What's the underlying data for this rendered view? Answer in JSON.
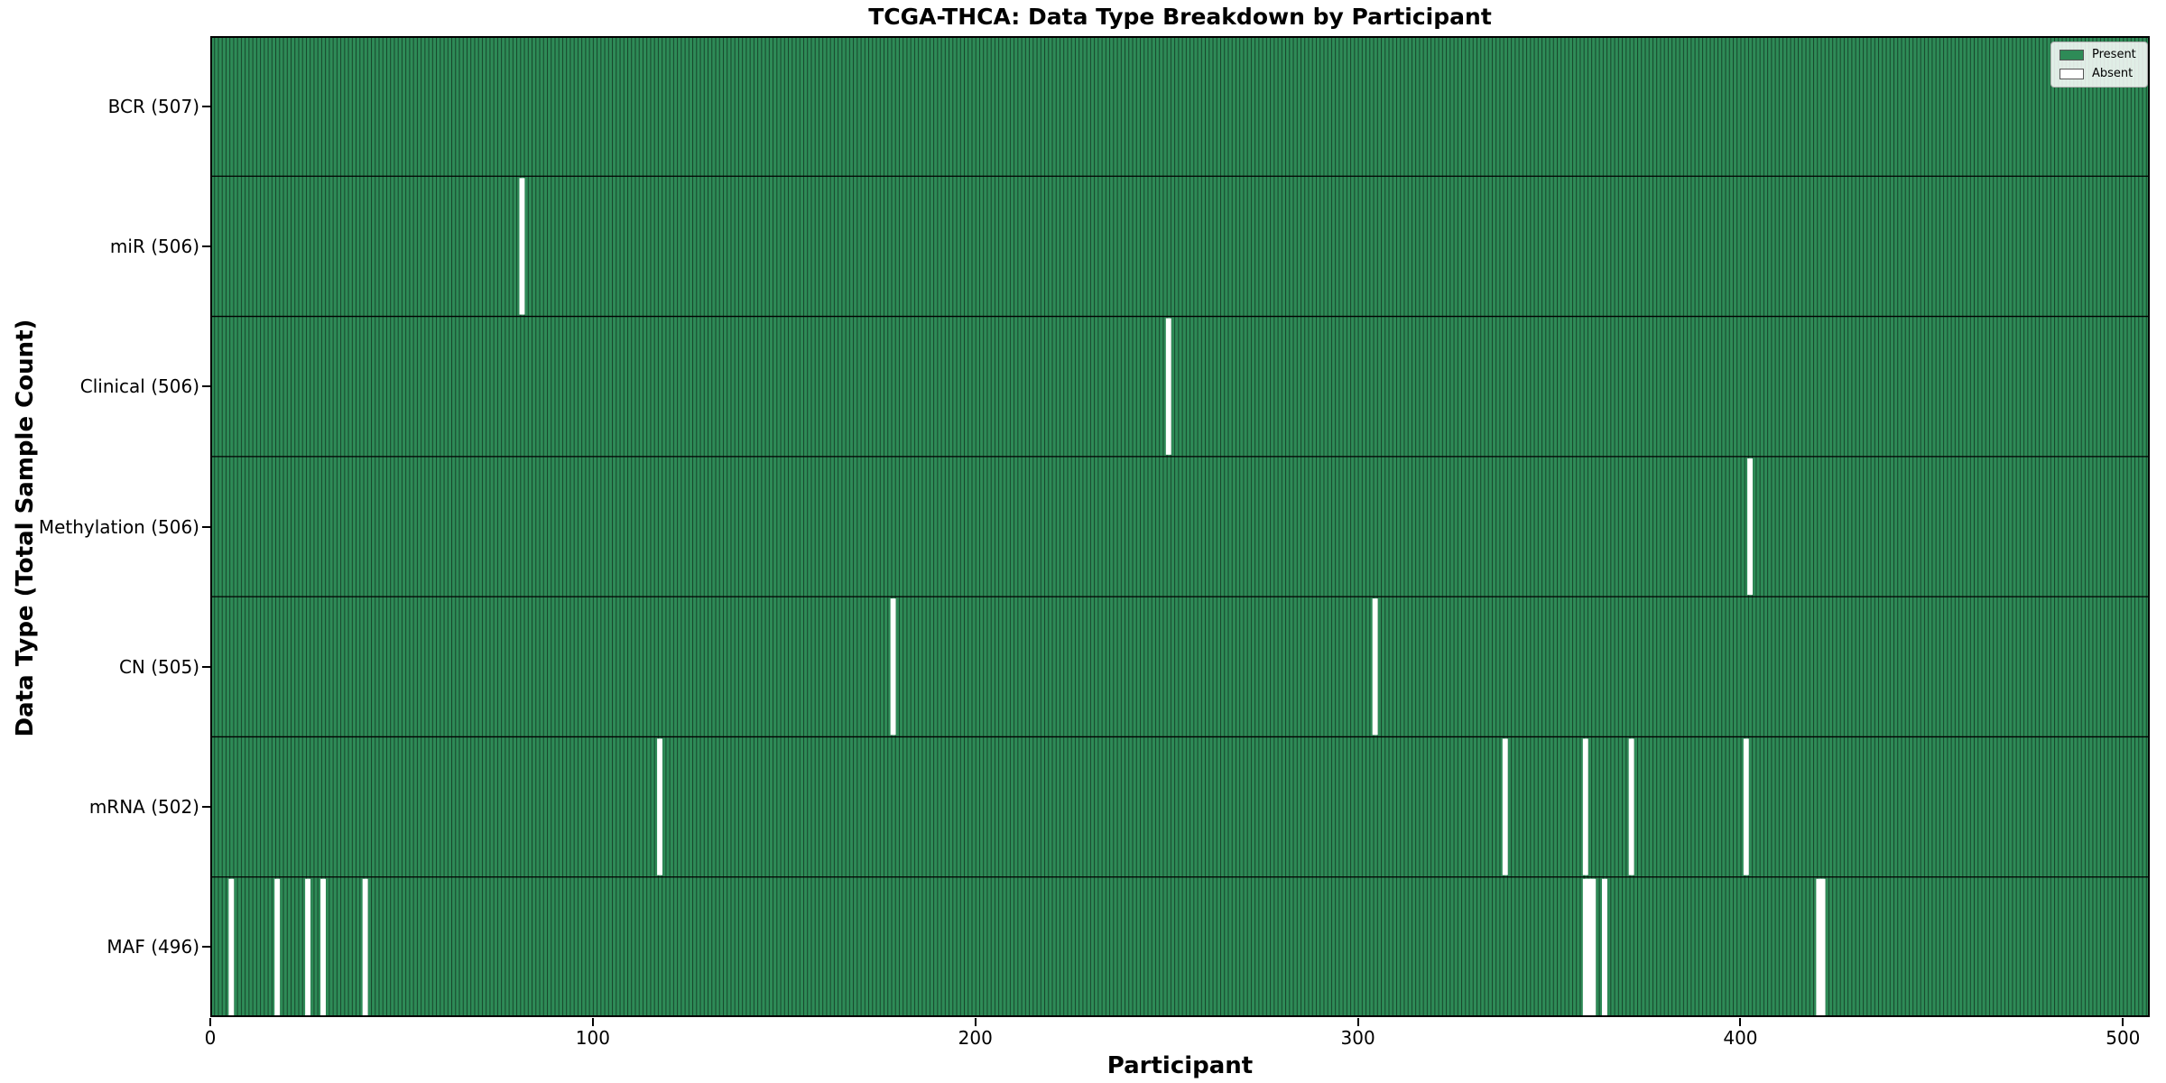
{
  "figure": {
    "title": "TCGA-THCA: Data Type Breakdown by Participant",
    "xlabel": "Participant",
    "ylabel": "Data Type (Total Sample Count)"
  },
  "legend": {
    "present_label": "Present",
    "absent_label": "Absent",
    "position": "upper right"
  },
  "colors": {
    "present": "#2e8b57",
    "absent": "#ffffff",
    "bar_edge": "rgba(0,0,0,0.5)",
    "separator": "#000000",
    "spine": "#000000"
  },
  "chart_data": {
    "type": "heatmap",
    "title": "TCGA-THCA: Data Type Breakdown by Participant",
    "xlabel": "Participant",
    "ylabel": "Data Type (Total Sample Count)",
    "legend": [
      "Present",
      "Absent"
    ],
    "legend_position": "upper right",
    "grid": false,
    "total_participants": 507,
    "xlim": [
      0,
      507
    ],
    "xticks": [
      0,
      100,
      200,
      300,
      400,
      500
    ],
    "rows": [
      {
        "label": "BCR (507)",
        "data_type": "BCR",
        "present_count": 507,
        "missing_participants": []
      },
      {
        "label": "miR (506)",
        "data_type": "miR",
        "present_count": 506,
        "missing_participants": [
          81
        ]
      },
      {
        "label": "Clinical (506)",
        "data_type": "Clinical",
        "present_count": 506,
        "missing_participants": [
          250
        ]
      },
      {
        "label": "Methylation (506)",
        "data_type": "Methylation",
        "present_count": 506,
        "missing_participants": [
          402
        ]
      },
      {
        "label": "CN (505)",
        "data_type": "CN",
        "present_count": 505,
        "missing_participants": [
          178,
          304
        ]
      },
      {
        "label": "mRNA (502)",
        "data_type": "mRNA",
        "present_count": 502,
        "missing_participants": [
          117,
          338,
          359,
          371,
          401
        ]
      },
      {
        "label": "MAF (496)",
        "data_type": "MAF",
        "present_count": 496,
        "missing_participants": [
          5,
          17,
          25,
          29,
          40,
          359,
          360,
          361,
          364,
          420,
          421
        ]
      }
    ]
  }
}
